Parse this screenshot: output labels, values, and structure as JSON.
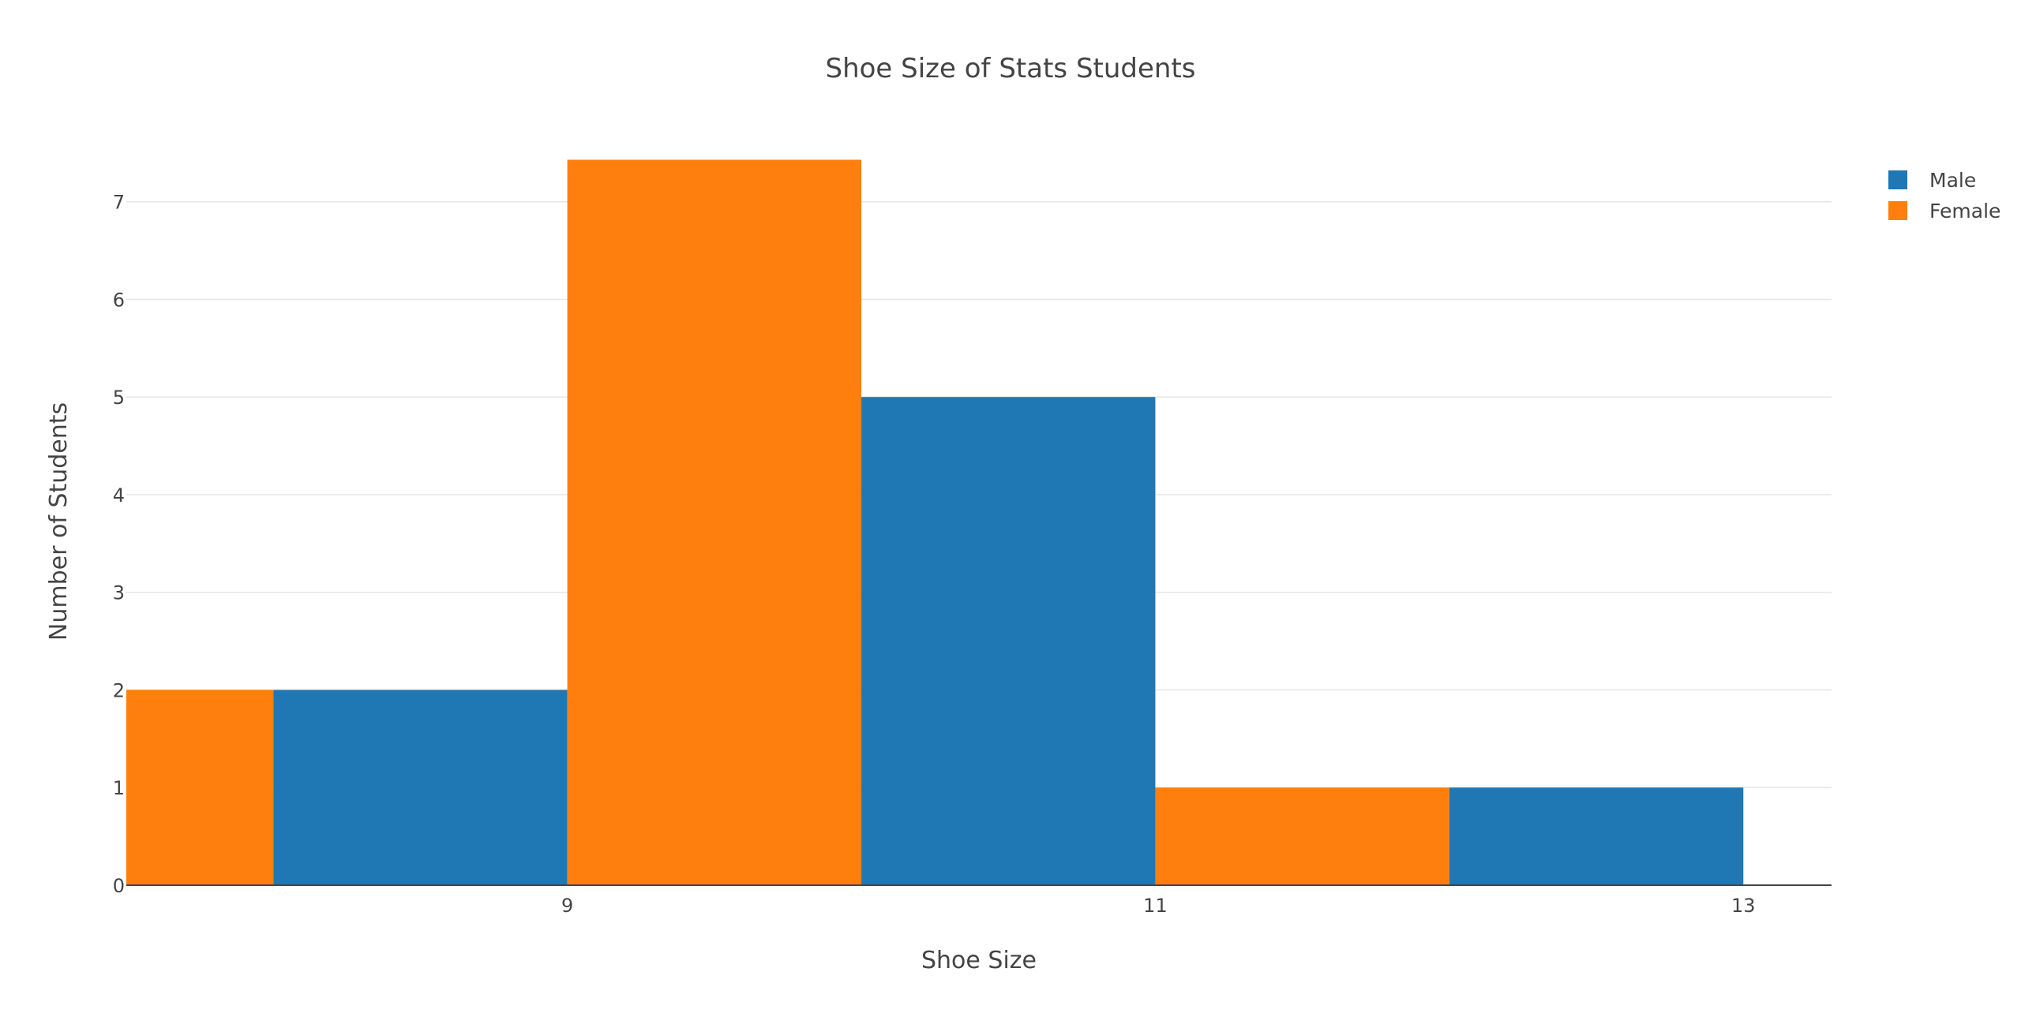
{
  "chart_data": {
    "type": "bar",
    "title": "Shoe Size of Stats Students",
    "xlabel": "Shoe Size",
    "ylabel": "Number of Students",
    "x_tick_labels": [
      "9",
      "11",
      "13"
    ],
    "y_tick_labels": [
      "0",
      "1",
      "2",
      "3",
      "4",
      "5",
      "6",
      "7"
    ],
    "xlim": [
      7.5,
      13.3
    ],
    "ylim": [
      0,
      7.45
    ],
    "grid": true,
    "legend_position": "top-right",
    "bin_width": 1,
    "series": [
      {
        "name": "Male",
        "color": "#1f77b4",
        "bins": [
          {
            "start": 8,
            "end": 9,
            "count": 2
          },
          {
            "start": 10,
            "end": 11,
            "count": 5
          },
          {
            "start": 12,
            "end": 13,
            "count": 1
          }
        ]
      },
      {
        "name": "Female",
        "color": "#ff7f0e",
        "bins": [
          {
            "start": 7,
            "end": 8,
            "count": 2
          },
          {
            "start": 9,
            "end": 10,
            "count": 7.43
          },
          {
            "start": 11,
            "end": 12,
            "count": 1
          }
        ]
      }
    ]
  }
}
